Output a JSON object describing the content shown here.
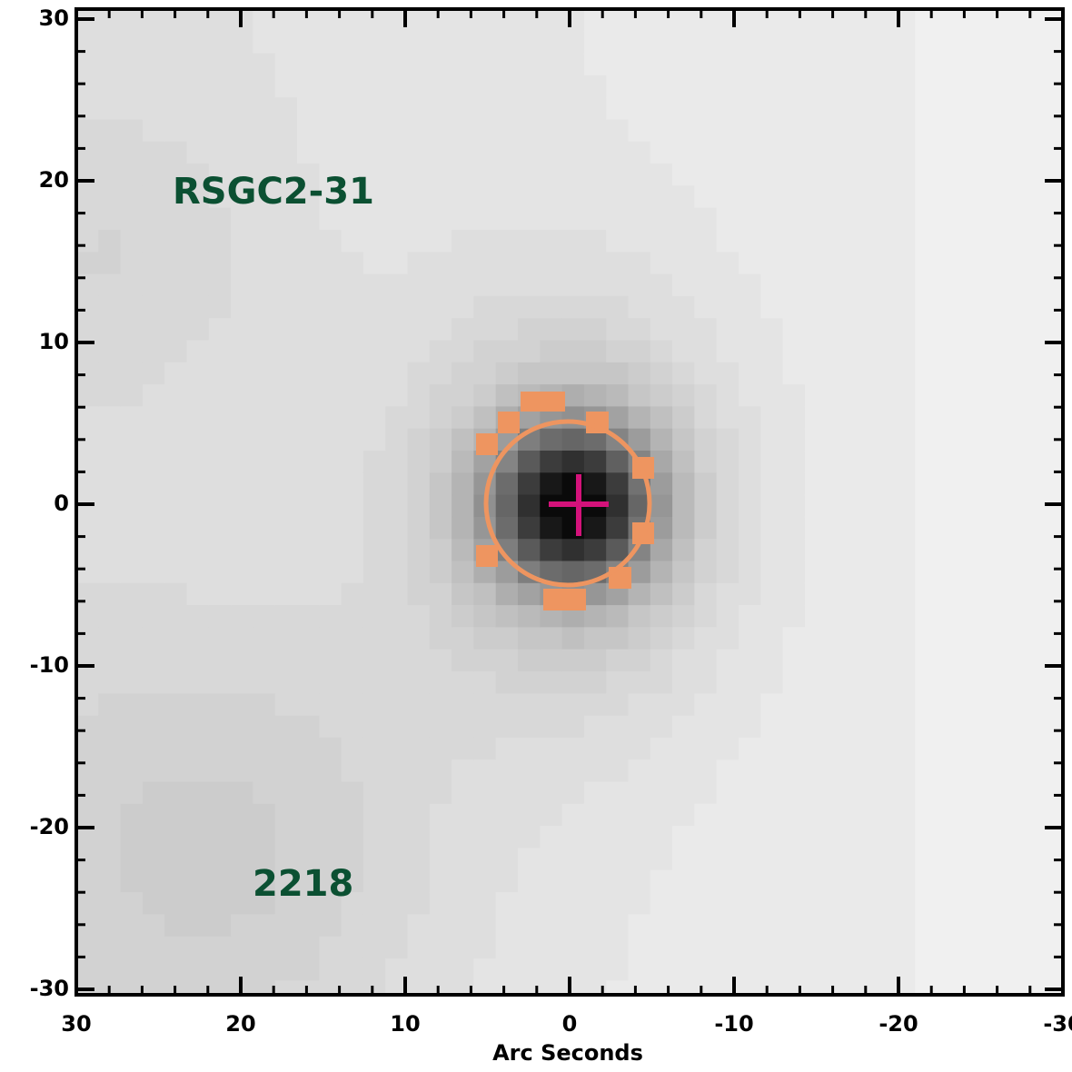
{
  "chart_data": {
    "type": "image",
    "annotations": [
      "RSGC2-31",
      "2218"
    ],
    "xlabel": "Arc Seconds",
    "xlim": [
      30,
      -30
    ],
    "ylim": [
      -30,
      30
    ],
    "xticks": [
      30,
      20,
      10,
      0,
      -10,
      -20,
      -30
    ],
    "yticks": [
      -30,
      -20,
      -10,
      0,
      10,
      20,
      30
    ]
  }
}
